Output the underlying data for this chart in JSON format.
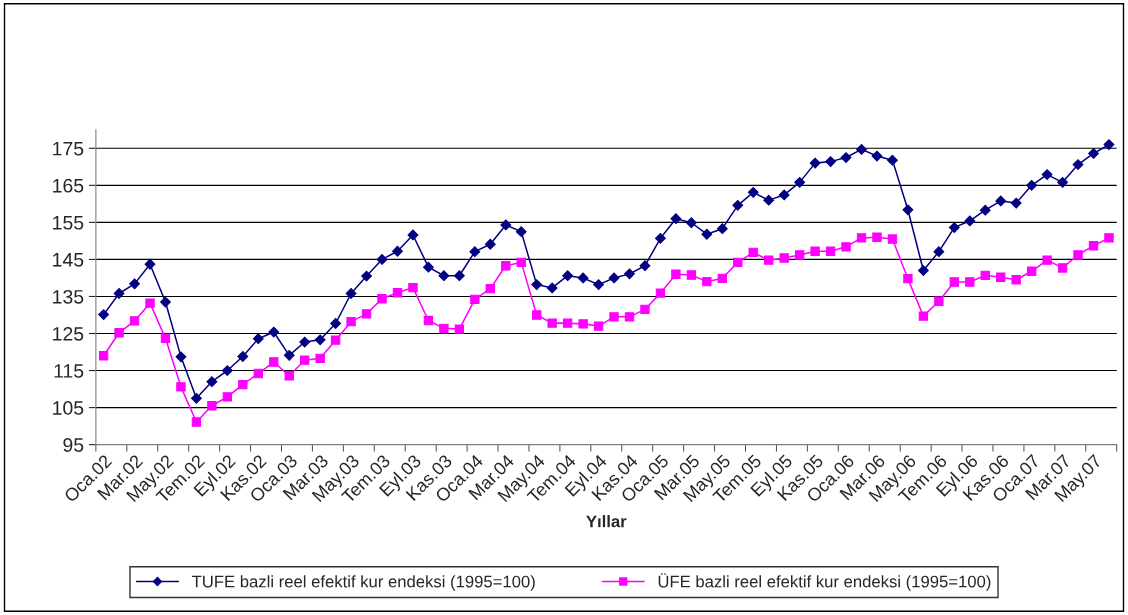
{
  "chart_data": {
    "type": "line",
    "xlabel": "Yıllar",
    "categories": [
      "Oca.02",
      null,
      "Mar.02",
      null,
      "May.02",
      null,
      "Tem.02",
      null,
      "Eyl.02",
      null,
      "Kas.02",
      null,
      "Oca.03",
      null,
      "Mar.03",
      null,
      "May.03",
      null,
      "Tem.03",
      null,
      "Eyl.03",
      null,
      "Kas.03",
      null,
      "Oca.04",
      null,
      "Mar.04",
      null,
      "May.04",
      null,
      "Tem.04",
      null,
      "Eyl.04",
      null,
      "Kas.04",
      null,
      "Oca.05",
      null,
      "Mar.05",
      null,
      "May.05",
      null,
      "Tem.05",
      null,
      "Eyl.05",
      null,
      "Kas.05",
      null,
      "Oca.06",
      null,
      "Mar.06",
      null,
      "May.06",
      null,
      "Tem.06",
      null,
      "Eyl.06",
      null,
      "Kas.06",
      null,
      "Oca.07",
      null,
      "Mar.07",
      null,
      "May.07",
      null
    ],
    "series": [
      {
        "name": "TUFE bazli reel efektif kur endeksi (1995=100)",
        "color": "#000080",
        "marker": "diamond",
        "values": [
          130.1,
          135.8,
          138.4,
          143.7,
          133.5,
          118.7,
          107.5,
          112,
          115,
          118.8,
          123.6,
          125.4,
          119.1,
          122.7,
          123.3,
          127.7,
          135.8,
          140.5,
          145,
          147.2,
          151.6,
          142.9,
          140.6,
          140.6,
          147.1,
          149.1,
          154.3,
          152.5,
          138.2,
          137.3,
          140.6,
          140,
          138.2,
          140,
          141.1,
          143.3,
          150.7,
          156,
          154.9,
          151.8,
          153.3,
          159.6,
          163.1,
          161,
          162.4,
          165.8,
          171,
          171.4,
          172.5,
          174.7,
          172.9,
          171.8,
          158.4,
          142,
          147.1,
          153.6,
          155.4,
          158.3,
          160.8,
          160.2,
          165,
          167.9,
          165.8,
          170.6,
          173.6,
          176
        ]
      },
      {
        "name": "ÜFE bazli reel efektif kur endeksi (1995=100)",
        "color": "#ff00ff",
        "marker": "square",
        "values": [
          119,
          125.2,
          128.4,
          133.2,
          123.7,
          110.6,
          101.1,
          105.5,
          107.9,
          111.2,
          114.2,
          117.3,
          113.6,
          117.8,
          118.3,
          123.2,
          128.2,
          130.3,
          134.4,
          136,
          137.4,
          128.5,
          126.4,
          126.2,
          134.2,
          137.1,
          143.3,
          144.2,
          130,
          127.8,
          127.8,
          127.6,
          127,
          129.5,
          129.5,
          131.5,
          135.9,
          141,
          140.8,
          139,
          139.9,
          144.2,
          146.9,
          144.8,
          145.4,
          146.2,
          147.2,
          147.2,
          148.4,
          150.8,
          151,
          150.5,
          139.8,
          129.7,
          133.7,
          138.9,
          138.9,
          140.7,
          140.2,
          139.5,
          141.8,
          144.8,
          142.7,
          146.2,
          148.7,
          150.8
        ]
      }
    ],
    "ylim": [
      95,
      180
    ],
    "yticks": [
      95,
      105,
      115,
      125,
      135,
      145,
      155,
      165,
      175
    ],
    "grid": "y",
    "legend": "bottom",
    "line_style": "solid"
  }
}
